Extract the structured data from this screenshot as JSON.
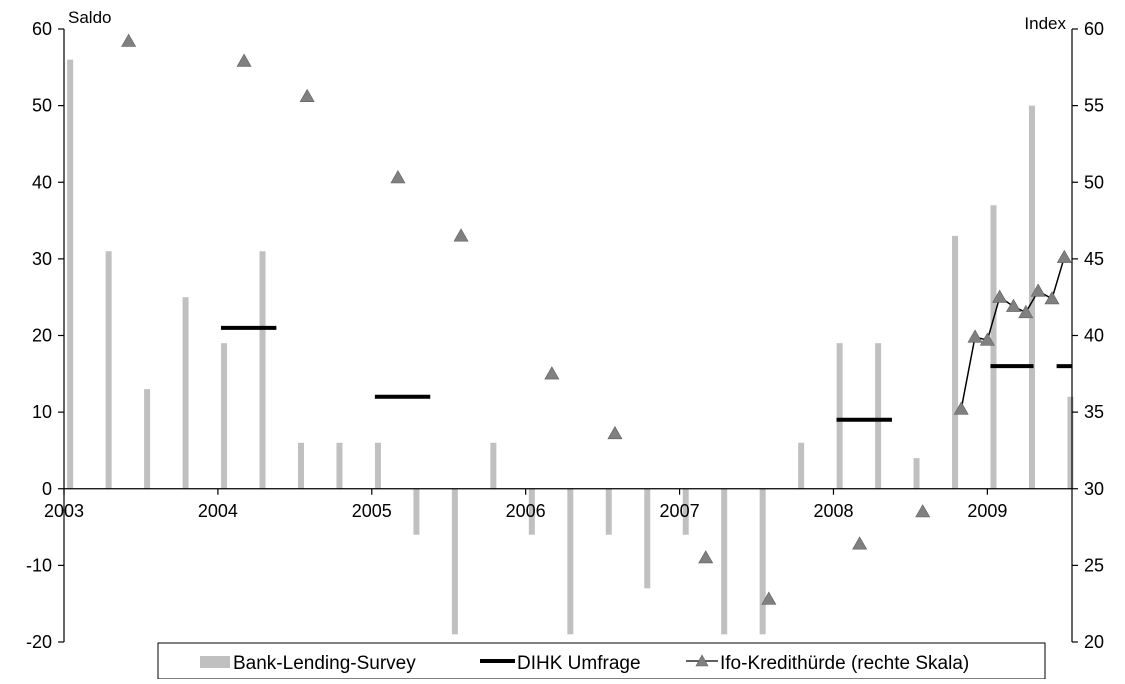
{
  "chart_data": {
    "type": "bar",
    "left_axis_label": "Saldo",
    "right_axis_label": "Index",
    "left_ylim": [
      -20,
      60
    ],
    "right_ylim": [
      20,
      60
    ],
    "xlim": [
      2003.0,
      2009.55
    ],
    "left_ticks": [
      "-20",
      "-10",
      "0",
      "10",
      "20",
      "30",
      "40",
      "50",
      "60"
    ],
    "right_ticks": [
      "20",
      "25",
      "30",
      "35",
      "40",
      "45",
      "50",
      "55",
      "60"
    ],
    "x_ticks": [
      "2003",
      "2004",
      "2005",
      "2006",
      "2007",
      "2008",
      "2009"
    ],
    "grid": false,
    "legend_position": "bottom",
    "series": [
      {
        "name": "Bank-Lending-Survey",
        "type": "bar",
        "axis": "left",
        "color": "#c0c0c0",
        "x": [
          2003.04,
          2003.29,
          2003.54,
          2003.79,
          2004.04,
          2004.29,
          2004.54,
          2004.79,
          2005.04,
          2005.29,
          2005.54,
          2005.79,
          2006.04,
          2006.29,
          2006.54,
          2006.79,
          2007.04,
          2007.29,
          2007.54,
          2007.79,
          2008.04,
          2008.29,
          2008.54,
          2008.79,
          2009.04,
          2009.29,
          2009.54
        ],
        "values": [
          56,
          31,
          13,
          25,
          19,
          31,
          6,
          6,
          6,
          -6,
          -19,
          6,
          -6,
          -19,
          -6,
          -13,
          -6,
          -19,
          -19,
          6,
          19,
          19,
          4,
          33,
          37,
          50,
          12
        ]
      },
      {
        "name": "DIHK Umfrage",
        "type": "segment",
        "axis": "left",
        "color": "#000000",
        "segments": [
          {
            "x0": 2004.02,
            "x1": 2004.38,
            "y": 21
          },
          {
            "x0": 2005.02,
            "x1": 2005.38,
            "y": 12
          },
          {
            "x0": 2008.02,
            "x1": 2008.38,
            "y": 9
          },
          {
            "x0": 2009.02,
            "x1": 2009.3,
            "y": 16
          },
          {
            "x0": 2009.45,
            "x1": 2009.55,
            "y": 16
          }
        ]
      },
      {
        "name": "Ifo-Kredithürde (rechte Skala)",
        "type": "marker",
        "axis": "right",
        "color": "#808080",
        "points": [
          [
            2003.42,
            59.2
          ],
          [
            2004.17,
            57.9
          ],
          [
            2004.58,
            55.6
          ],
          [
            2005.17,
            50.3
          ],
          [
            2005.58,
            46.5
          ],
          [
            2006.17,
            37.5
          ],
          [
            2006.58,
            33.6
          ],
          [
            2007.17,
            25.5
          ],
          [
            2007.58,
            22.8
          ],
          [
            2008.17,
            26.4
          ],
          [
            2008.58,
            28.5
          ],
          [
            2008.83,
            35.2
          ],
          [
            2008.92,
            39.9
          ],
          [
            2009.0,
            39.7
          ],
          [
            2009.08,
            42.5
          ],
          [
            2009.17,
            41.9
          ],
          [
            2009.25,
            41.5
          ],
          [
            2009.33,
            42.9
          ],
          [
            2009.42,
            42.4
          ],
          [
            2009.5,
            45.1
          ]
        ],
        "connected_from": 2008.83
      }
    ]
  }
}
